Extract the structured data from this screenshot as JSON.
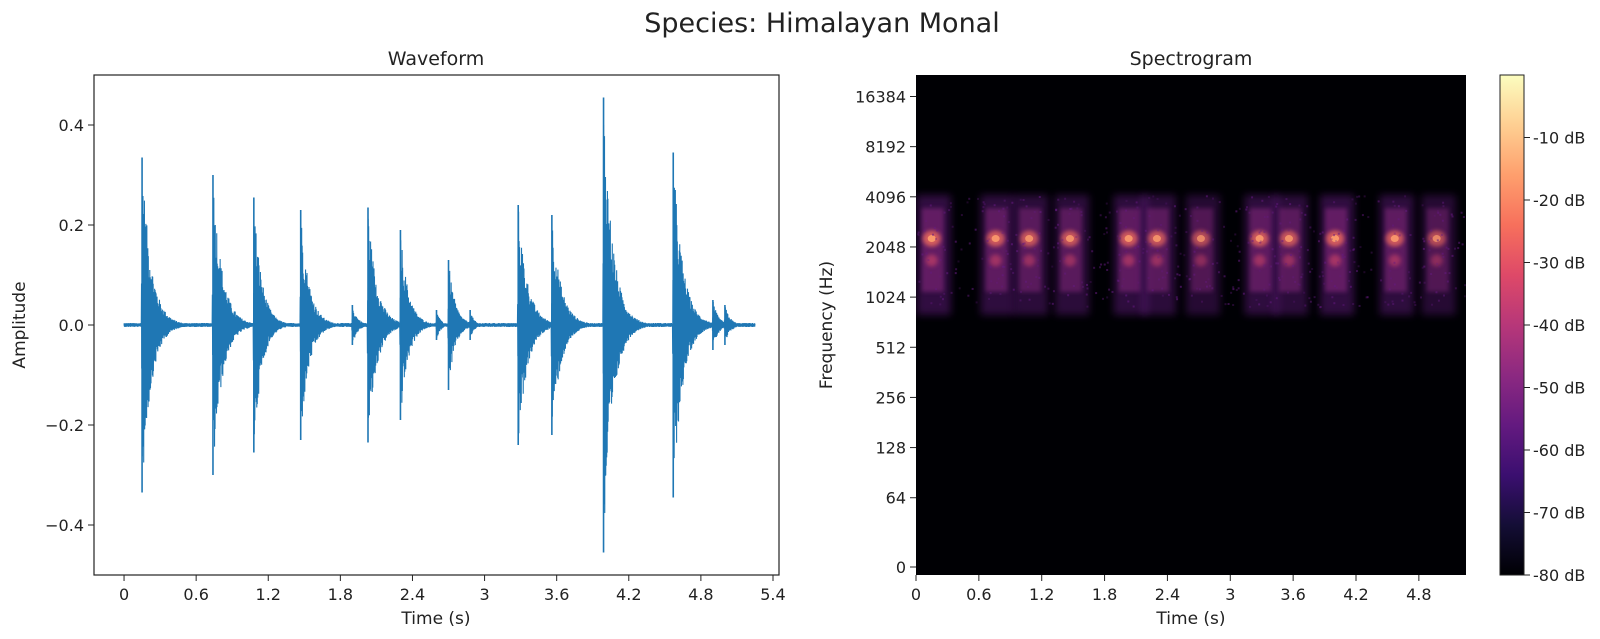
{
  "suptitle": "Species: Himalayan Monal",
  "colors": {
    "waveform": "#1f77b4",
    "spectrogram_background": "#000004",
    "colormap": [
      "#000004",
      "#140e36",
      "#3b0f70",
      "#641a80",
      "#8c2981",
      "#b73779",
      "#de4968",
      "#f7705c",
      "#fe9f6d",
      "#fecf92",
      "#fcfdbf"
    ]
  },
  "chart_data": [
    {
      "type": "line",
      "title": "Waveform",
      "xlabel": "Time (s)",
      "ylabel": "Amplitude",
      "xlim": [
        -0.25,
        5.45
      ],
      "ylim": [
        -0.5,
        0.5
      ],
      "xticks": [
        0,
        0.6,
        1.2,
        1.8,
        2.4,
        3,
        3.6,
        4.2,
        4.8,
        5.4
      ],
      "xtick_labels": [
        "0",
        "0.6",
        "1.2",
        "1.8",
        "2.4",
        "3",
        "3.6",
        "4.2",
        "4.8",
        "5.4"
      ],
      "yticks": [
        0.4,
        0.2,
        0.0,
        -0.2,
        -0.4
      ],
      "ytick_labels": [
        "0.4",
        "0.2",
        "0.0",
        "−0.2",
        "−0.4"
      ],
      "duration": 5.25,
      "series": [
        {
          "bursts": [
            {
              "t": 0.15,
              "pos": 0.335,
              "neg": -0.335,
              "decay": 0.35
            },
            {
              "t": 0.74,
              "pos": 0.3,
              "neg": -0.3,
              "decay": 0.35
            },
            {
              "t": 1.08,
              "pos": 0.255,
              "neg": -0.255,
              "decay": 0.3
            },
            {
              "t": 1.47,
              "pos": 0.23,
              "neg": -0.23,
              "decay": 0.32
            },
            {
              "t": 1.9,
              "pos": 0.04,
              "neg": -0.04,
              "decay": 0.2
            },
            {
              "t": 2.03,
              "pos": 0.235,
              "neg": -0.235,
              "decay": 0.33
            },
            {
              "t": 2.3,
              "pos": 0.19,
              "neg": -0.19,
              "decay": 0.3
            },
            {
              "t": 2.6,
              "pos": 0.03,
              "neg": -0.03,
              "decay": 0.15
            },
            {
              "t": 2.7,
              "pos": 0.13,
              "neg": -0.13,
              "decay": 0.25
            },
            {
              "t": 2.88,
              "pos": 0.03,
              "neg": -0.03,
              "decay": 0.15
            },
            {
              "t": 3.28,
              "pos": 0.24,
              "neg": -0.24,
              "decay": 0.35
            },
            {
              "t": 3.56,
              "pos": 0.22,
              "neg": -0.22,
              "decay": 0.35
            },
            {
              "t": 3.99,
              "pos": 0.455,
              "neg": -0.455,
              "decay": 0.35
            },
            {
              "t": 4.57,
              "pos": 0.345,
              "neg": -0.345,
              "decay": 0.35
            },
            {
              "t": 4.9,
              "pos": 0.05,
              "neg": -0.05,
              "decay": 0.2
            },
            {
              "t": 5.0,
              "pos": 0.04,
              "neg": -0.04,
              "decay": 0.2
            }
          ]
        }
      ]
    },
    {
      "type": "heatmap",
      "title": "Spectrogram",
      "xlabel": "Time (s)",
      "ylabel": "Frequency (Hz)",
      "xlim": [
        0,
        5.25
      ],
      "xticks": [
        0,
        0.6,
        1.2,
        1.8,
        2.4,
        3,
        3.6,
        4.2,
        4.8
      ],
      "xtick_labels": [
        "0",
        "0.6",
        "1.2",
        "1.8",
        "2.4",
        "3",
        "3.6",
        "4.2",
        "4.8"
      ],
      "yscale": "log2",
      "ylim_hz": [
        22,
        22050
      ],
      "yticks_hz": [
        0,
        64,
        128,
        256,
        512,
        1024,
        2048,
        4096,
        8192,
        16384
      ],
      "ytick_labels": [
        "0",
        "64",
        "128",
        "256",
        "512",
        "1024",
        "2048",
        "4096",
        "8192",
        "16384"
      ],
      "colorbar": {
        "range_db": [
          -80,
          0
        ],
        "ticks_db": [
          -10,
          -20,
          -30,
          -40,
          -50,
          -60,
          -70,
          -80
        ],
        "tick_labels": [
          "-10 dB",
          "-20 dB",
          "-30 dB",
          "-40 dB",
          "-50 dB",
          "-60 dB",
          "-70 dB",
          "-80 dB"
        ]
      },
      "calls": [
        {
          "t": 0.15,
          "strength": 0.9
        },
        {
          "t": 0.76,
          "strength": 0.85
        },
        {
          "t": 1.08,
          "strength": 0.8
        },
        {
          "t": 1.47,
          "strength": 0.8
        },
        {
          "t": 2.03,
          "strength": 0.85
        },
        {
          "t": 2.3,
          "strength": 0.8
        },
        {
          "t": 2.72,
          "strength": 0.7
        },
        {
          "t": 3.28,
          "strength": 0.85
        },
        {
          "t": 3.56,
          "strength": 0.8
        },
        {
          "t": 4.0,
          "strength": 0.9
        },
        {
          "t": 4.57,
          "strength": 0.85
        },
        {
          "t": 4.97,
          "strength": 0.7
        }
      ]
    }
  ]
}
